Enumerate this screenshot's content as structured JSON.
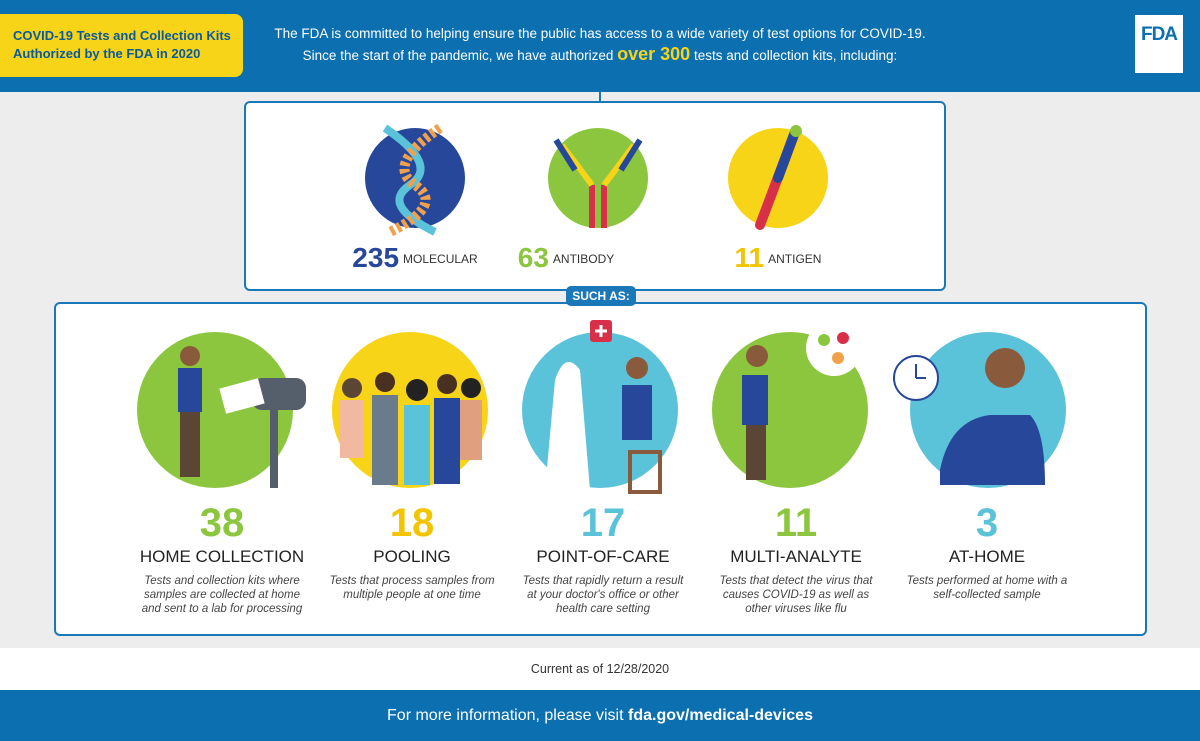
{
  "header": {
    "badge": "COVID-19 Tests and Collection Kits Authorized by the FDA in 2020",
    "intro_line1": "The FDA is committed to helping ensure the public has access to a wide variety of test options for COVID-19.",
    "intro_line2_before": "Since the start of the pandemic, we have authorized",
    "intro_highlight": "over 300",
    "intro_line2_after": "tests and collection kits, including:",
    "logo": "FDA"
  },
  "test_types": [
    {
      "count": "235",
      "label": "MOLECULAR"
    },
    {
      "count": "63",
      "label": "ANTIBODY"
    },
    {
      "count": "11",
      "label": "ANTIGEN"
    }
  ],
  "such_as": "SUCH AS:",
  "examples": [
    {
      "count": "38",
      "title": "HOME COLLECTION",
      "description": "Tests and collection kits where samples are collected at home and sent to a lab for processing"
    },
    {
      "count": "18",
      "title": "POOLING",
      "description": "Tests that process samples from multiple people at one time"
    },
    {
      "count": "17",
      "title": "POINT-OF-CARE",
      "description": "Tests that rapidly return a result at your doctor's office or other health care setting"
    },
    {
      "count": "11",
      "title": "MULTI-ANALYTE",
      "description": "Tests that detect the virus that causes COVID-19 as well as other viruses like flu"
    },
    {
      "count": "3",
      "title": "AT-HOME",
      "description": "Tests performed at home with a self-collected sample"
    }
  ],
  "footer": {
    "current": "Current as of 12/28/2020",
    "more_info": "For more information, please visit",
    "link": "fda.gov/medical-devices"
  }
}
